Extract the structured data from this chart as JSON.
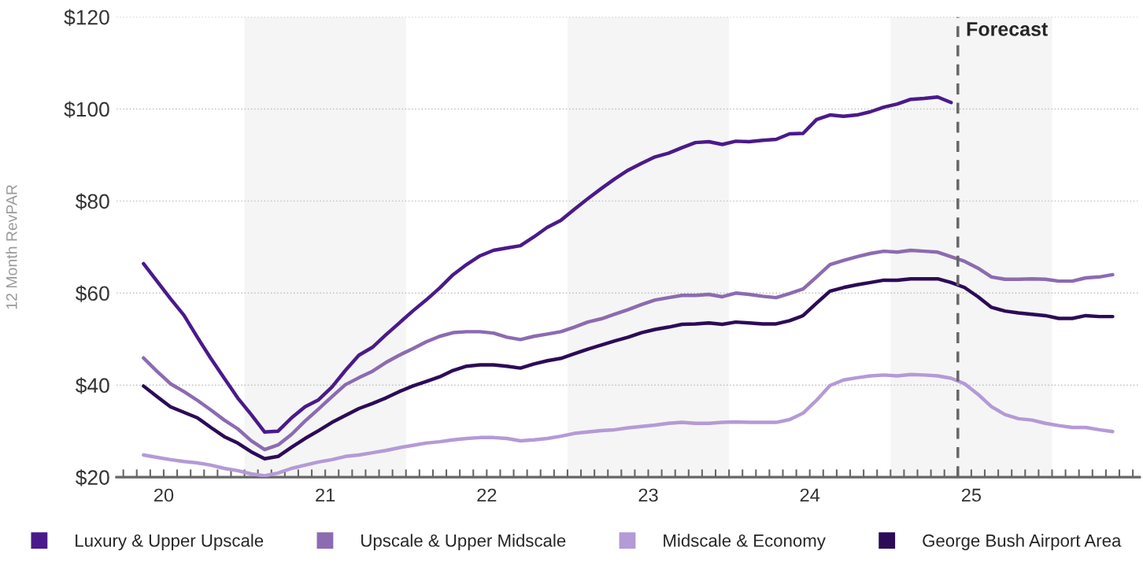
{
  "chart_data": {
    "type": "line",
    "ylabel": "12 Month RevPAR",
    "x": [
      19.875,
      19.9583,
      20.0417,
      20.125,
      20.2083,
      20.2917,
      20.375,
      20.4583,
      20.5417,
      20.625,
      20.7083,
      20.7917,
      20.875,
      20.9583,
      21.0417,
      21.125,
      21.2083,
      21.2917,
      21.375,
      21.4583,
      21.5417,
      21.625,
      21.7083,
      21.7917,
      21.875,
      21.9583,
      22.0417,
      22.125,
      22.2083,
      22.2917,
      22.375,
      22.4583,
      22.5417,
      22.625,
      22.7083,
      22.7917,
      22.875,
      22.9583,
      23.0417,
      23.125,
      23.2083,
      23.2917,
      23.375,
      23.4583,
      23.5417,
      23.625,
      23.7083,
      23.7917,
      23.875,
      23.9583,
      24.0417,
      24.125,
      24.2083,
      24.2917,
      24.375,
      24.4583,
      24.5417,
      24.625,
      24.7083,
      24.7917,
      24.875,
      24.9583,
      25.0417,
      25.125,
      25.2083,
      25.2917,
      25.375,
      25.4583,
      25.5417,
      25.625,
      25.7083,
      25.7917,
      25.875
    ],
    "series": [
      {
        "name": "Luxury & Upper Upscale",
        "color": "#4a1a8a",
        "values": [
          66.4,
          62.6,
          58.8,
          55.2,
          50.4,
          45.8,
          41.5,
          37.2,
          33.6,
          29.8,
          30.0,
          32.9,
          35.3,
          36.8,
          39.6,
          43.2,
          46.5,
          48.2,
          50.9,
          53.5,
          56.1,
          58.5,
          61.1,
          64.0,
          66.2,
          68.1,
          69.3,
          69.8,
          70.3,
          72.2,
          74.3,
          75.8,
          78.2,
          80.5,
          82.7,
          84.8,
          86.7,
          88.2,
          89.6,
          90.4,
          91.6,
          92.7,
          92.9,
          92.3,
          93.0,
          92.9,
          93.2,
          93.4,
          94.6,
          94.7,
          97.7,
          98.7,
          98.4,
          98.7,
          99.4,
          100.4,
          101.1,
          102.1,
          102.3,
          102.6,
          101.4,
          null,
          null,
          null,
          null,
          null,
          null,
          null,
          null,
          null,
          null,
          null,
          null
        ]
      },
      {
        "name": "Upscale & Upper Midscale",
        "color": "#8c6bb1",
        "values": [
          45.9,
          43.0,
          40.3,
          38.6,
          36.7,
          34.6,
          32.4,
          30.5,
          27.9,
          26.0,
          27.0,
          29.3,
          32.2,
          34.8,
          37.5,
          40.1,
          41.6,
          43.0,
          44.9,
          46.5,
          47.9,
          49.4,
          50.6,
          51.4,
          51.6,
          51.6,
          51.3,
          50.4,
          49.9,
          50.6,
          51.1,
          51.6,
          52.6,
          53.7,
          54.4,
          55.4,
          56.4,
          57.5,
          58.5,
          59.0,
          59.5,
          59.5,
          59.7,
          59.2,
          60.0,
          59.7,
          59.3,
          59.0,
          59.9,
          60.9,
          63.5,
          66.2,
          67.1,
          67.9,
          68.6,
          69.1,
          68.9,
          69.3,
          69.1,
          68.9,
          67.9,
          66.9,
          65.4,
          63.5,
          63.0,
          63.0,
          63.1,
          63.0,
          62.6,
          62.6,
          63.3,
          63.5,
          64.0
        ]
      },
      {
        "name": "Midscale & Economy",
        "color": "#b49ad6",
        "values": [
          24.8,
          24.3,
          23.8,
          23.4,
          23.1,
          22.6,
          21.9,
          21.4,
          20.7,
          20.3,
          20.9,
          21.9,
          22.6,
          23.3,
          23.8,
          24.5,
          24.8,
          25.3,
          25.8,
          26.4,
          26.9,
          27.4,
          27.7,
          28.1,
          28.4,
          28.6,
          28.6,
          28.4,
          27.9,
          28.1,
          28.4,
          28.9,
          29.5,
          29.8,
          30.1,
          30.3,
          30.7,
          31.0,
          31.3,
          31.7,
          31.9,
          31.7,
          31.7,
          31.9,
          32.0,
          31.9,
          31.9,
          31.9,
          32.5,
          33.9,
          36.7,
          39.9,
          41.1,
          41.6,
          42.0,
          42.2,
          42.0,
          42.3,
          42.2,
          42.0,
          41.5,
          40.3,
          38.0,
          35.3,
          33.6,
          32.7,
          32.4,
          31.7,
          31.2,
          30.8,
          30.8,
          30.3,
          29.9
        ]
      },
      {
        "name": "George Bush Airport Area",
        "color": "#2c0b57",
        "values": [
          39.8,
          37.5,
          35.3,
          34.1,
          32.9,
          30.8,
          28.8,
          27.4,
          25.5,
          24.0,
          24.5,
          26.5,
          28.4,
          30.1,
          31.9,
          33.4,
          34.9,
          36.0,
          37.2,
          38.6,
          39.8,
          40.8,
          41.8,
          43.2,
          44.1,
          44.4,
          44.4,
          44.1,
          43.7,
          44.6,
          45.3,
          45.8,
          46.8,
          47.8,
          48.7,
          49.6,
          50.4,
          51.4,
          52.1,
          52.6,
          53.2,
          53.3,
          53.5,
          53.2,
          53.7,
          53.5,
          53.3,
          53.3,
          54.0,
          55.1,
          57.8,
          60.4,
          61.2,
          61.8,
          62.3,
          62.8,
          62.8,
          63.1,
          63.1,
          63.1,
          62.3,
          61.2,
          59.2,
          56.9,
          56.1,
          55.7,
          55.4,
          55.1,
          54.5,
          54.5,
          55.1,
          54.9,
          54.9
        ]
      }
    ],
    "xlim": [
      19.7083,
      26.0417
    ],
    "xticks": [
      {
        "value": 19.75,
        "label": null
      },
      {
        "value": 19.8333,
        "label": null
      },
      {
        "value": 19.9167,
        "label": null
      },
      20,
      {
        "value": 20.0833,
        "label": null
      },
      {
        "value": 20.1667,
        "label": null
      },
      {
        "value": 20.25,
        "label": null
      },
      {
        "value": 20.3333,
        "label": null
      },
      {
        "value": 20.4167,
        "label": null
      },
      {
        "value": 20.5,
        "label": null
      },
      {
        "value": 20.5833,
        "label": null
      },
      {
        "value": 20.6667,
        "label": null
      },
      {
        "value": 20.75,
        "label": null
      },
      {
        "value": 20.8333,
        "label": null
      },
      {
        "value": 20.9167,
        "label": null
      },
      21,
      {
        "value": 21.0833,
        "label": null
      },
      {
        "value": 21.1667,
        "label": null
      },
      {
        "value": 21.25,
        "label": null
      },
      {
        "value": 21.3333,
        "label": null
      },
      {
        "value": 21.4167,
        "label": null
      },
      {
        "value": 21.5,
        "label": null
      },
      {
        "value": 21.5833,
        "label": null
      },
      {
        "value": 21.6667,
        "label": null
      },
      {
        "value": 21.75,
        "label": null
      },
      {
        "value": 21.8333,
        "label": null
      },
      {
        "value": 21.9167,
        "label": null
      },
      22,
      {
        "value": 22.0833,
        "label": null
      },
      {
        "value": 22.1667,
        "label": null
      },
      {
        "value": 22.25,
        "label": null
      },
      {
        "value": 22.3333,
        "label": null
      },
      {
        "value": 22.4167,
        "label": null
      },
      {
        "value": 22.5,
        "label": null
      },
      {
        "value": 22.5833,
        "label": null
      },
      {
        "value": 22.6667,
        "label": null
      },
      {
        "value": 22.75,
        "label": null
      },
      {
        "value": 22.8333,
        "label": null
      },
      {
        "value": 22.9167,
        "label": null
      },
      23,
      {
        "value": 23.0833,
        "label": null
      },
      {
        "value": 23.1667,
        "label": null
      },
      {
        "value": 23.25,
        "label": null
      },
      {
        "value": 23.3333,
        "label": null
      },
      {
        "value": 23.4167,
        "label": null
      },
      {
        "value": 23.5,
        "label": null
      },
      {
        "value": 23.5833,
        "label": null
      },
      {
        "value": 23.6667,
        "label": null
      },
      {
        "value": 23.75,
        "label": null
      },
      {
        "value": 23.8333,
        "label": null
      },
      {
        "value": 23.9167,
        "label": null
      },
      24,
      {
        "value": 24.0833,
        "label": null
      },
      {
        "value": 24.1667,
        "label": null
      },
      {
        "value": 24.25,
        "label": null
      },
      {
        "value": 24.3333,
        "label": null
      },
      {
        "value": 24.4167,
        "label": null
      },
      {
        "value": 24.5,
        "label": null
      },
      {
        "value": 24.5833,
        "label": null
      },
      {
        "value": 24.6667,
        "label": null
      },
      {
        "value": 24.75,
        "label": null
      },
      {
        "value": 24.8333,
        "label": null
      },
      {
        "value": 24.9167,
        "label": null
      },
      25,
      {
        "value": 25.0833,
        "label": null
      },
      {
        "value": 25.1667,
        "label": null
      },
      {
        "value": 25.25,
        "label": null
      },
      {
        "value": 25.3333,
        "label": null
      },
      {
        "value": 25.4167,
        "label": null
      },
      {
        "value": 25.5,
        "label": null
      },
      {
        "value": 25.5833,
        "label": null
      },
      {
        "value": 25.6667,
        "label": null
      },
      {
        "value": 25.75,
        "label": null
      },
      {
        "value": 25.8333,
        "label": null
      },
      {
        "value": 25.9167,
        "label": null
      },
      {
        "value": 26,
        "label": null
      }
    ],
    "ylim": [
      20,
      120
    ],
    "yticks": [
      {
        "value": 20,
        "label": "$20"
      },
      {
        "value": 40,
        "label": "$40"
      },
      {
        "value": 60,
        "label": "$60"
      },
      {
        "value": 80,
        "label": "$80"
      },
      {
        "value": 100,
        "label": "$100"
      },
      {
        "value": 120,
        "label": "$120"
      }
    ],
    "bands": [
      {
        "axis": "x",
        "from": 20.5,
        "to": 21.5,
        "color": "#f5f5f5"
      },
      {
        "axis": "x",
        "from": 22.5,
        "to": 23.5,
        "color": "#f5f5f5"
      },
      {
        "axis": "x",
        "from": 24.5,
        "to": 25.5,
        "color": "#f5f5f5"
      }
    ],
    "ref_lines": [
      {
        "axis": "x",
        "value": 24.9167,
        "label": "Forecast",
        "color": "#666666",
        "line_style": "dashed"
      }
    ],
    "grid": "y",
    "legend": "bottom",
    "marker": "none",
    "line_style": "solid"
  }
}
